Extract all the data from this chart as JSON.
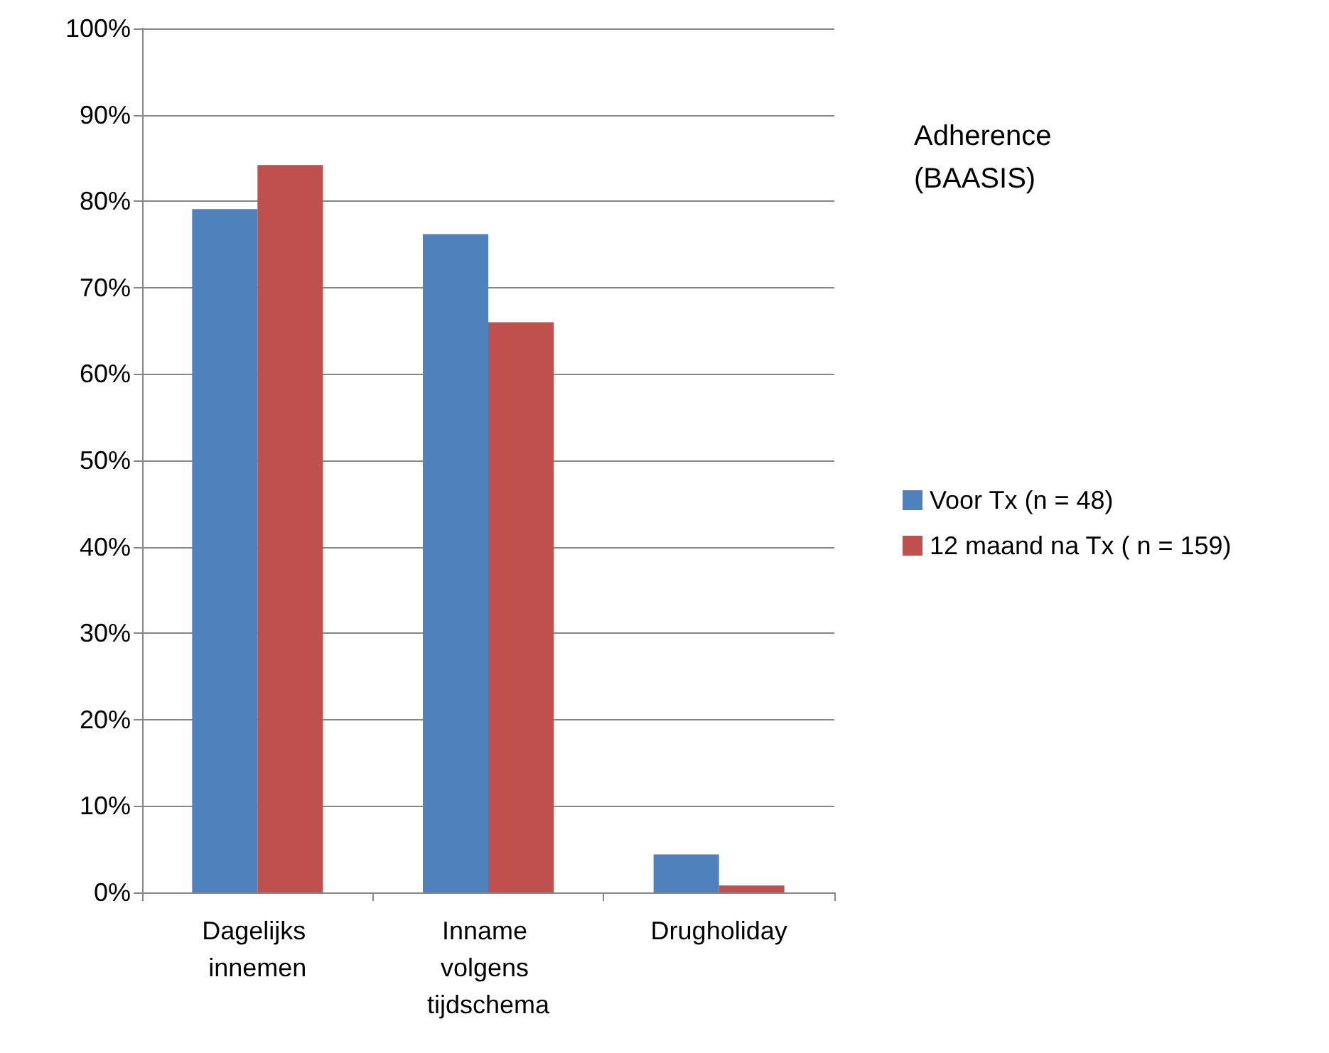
{
  "chart_data": {
    "type": "bar",
    "title": "Adherence (BAASIS)",
    "categories": [
      "Dagelijks innemen",
      "Inname volgens tijdschema",
      "Drugholiday"
    ],
    "series": [
      {
        "name": "Voor Tx (n = 48)",
        "color": "#4f81bd",
        "values": [
          79.1,
          76.2,
          4.4
        ]
      },
      {
        "name": "12 maand na Tx ( n = 159)",
        "color": "#c0504d",
        "values": [
          84.2,
          66.0,
          0.8
        ]
      }
    ],
    "ylim": [
      0,
      100
    ],
    "yticks": [
      {
        "value": 0,
        "label": "0%"
      },
      {
        "value": 10,
        "label": "10%"
      },
      {
        "value": 20,
        "label": "20%"
      },
      {
        "value": 30,
        "label": "30%"
      },
      {
        "value": 40,
        "label": "40%"
      },
      {
        "value": 50,
        "label": "50%"
      },
      {
        "value": 60,
        "label": "60%"
      },
      {
        "value": 70,
        "label": "70%"
      },
      {
        "value": 80,
        "label": "80%"
      },
      {
        "value": 90,
        "label": "90%"
      },
      {
        "value": 100,
        "label": "100%"
      }
    ],
    "grid": "y",
    "legend": "right"
  }
}
